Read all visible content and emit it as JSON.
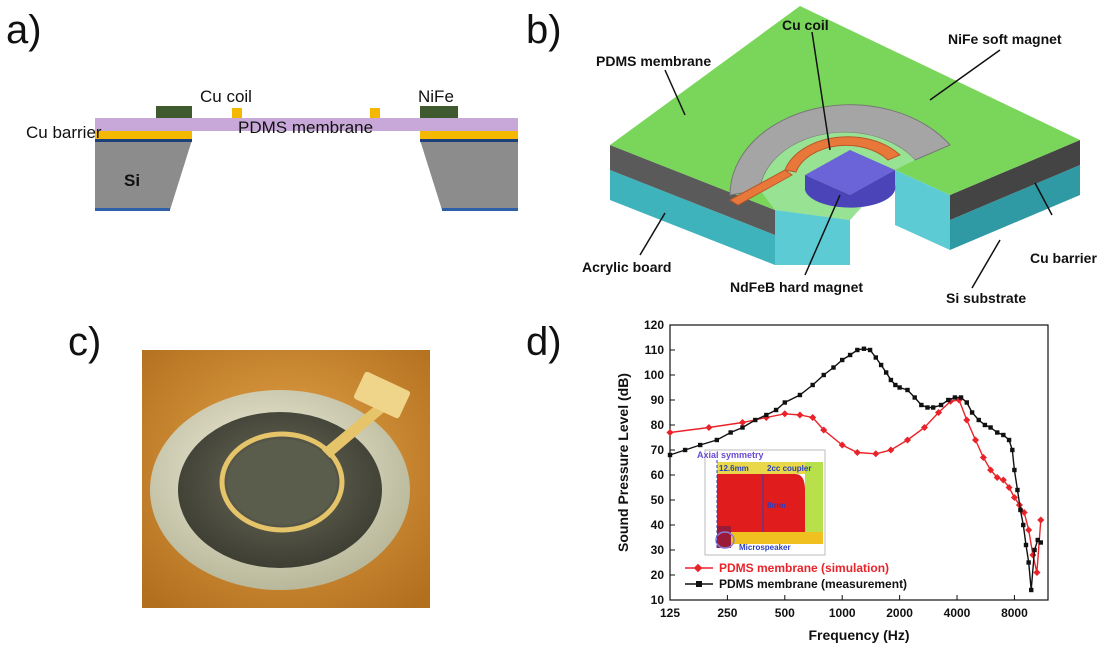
{
  "panels": {
    "a": {
      "letter": "a)",
      "labels": {
        "cu_coil": "Cu coil",
        "nife": "NiFe",
        "cu_barrier": "Cu barrier",
        "pdms": "PDMS membrane",
        "si": "Si"
      }
    },
    "b": {
      "letter": "b)",
      "labels": {
        "cu_coil": "Cu coil",
        "nife": "NiFe soft magnet",
        "pdms": "PDMS membrane",
        "acrylic": "Acrylic board",
        "ndfeb": "NdFeB hard magnet",
        "si": "Si substrate",
        "cu_barrier": "Cu barrier"
      }
    },
    "c": {
      "letter": "c)"
    },
    "d": {
      "letter": "d)"
    }
  },
  "colors": {
    "simulation": "#e8242a",
    "measurement": "#111111",
    "pdms_membrane": "#c8a8d8",
    "nife": "#3f5a2e",
    "cu": "#f5b800",
    "si": "#8c8c8c",
    "pdms_green": "#7ad65a",
    "acrylic": "#56c7cf",
    "ndfeb": "#6a64d8",
    "coil_orange": "#e8773a"
  },
  "chart_data": {
    "type": "line",
    "title": "",
    "xlabel": "Frequency (Hz)",
    "ylabel": "Sound Pressure Level (dB)",
    "xscale": "log",
    "xlim": [
      125,
      12000
    ],
    "ylim": [
      10,
      120
    ],
    "xticks": [
      125,
      250,
      500,
      1000,
      2000,
      4000,
      8000
    ],
    "xtick_labels": [
      "125",
      "250",
      "500",
      "1000",
      "2000",
      "4000",
      "8000"
    ],
    "yticks": [
      10,
      20,
      30,
      40,
      50,
      60,
      70,
      80,
      90,
      100,
      110,
      120
    ],
    "grid": false,
    "legend_position": "bottom-left",
    "series": [
      {
        "name": "PDMS membrane (simulation)",
        "color": "#e8242a",
        "marker": "diamond",
        "x": [
          125,
          200,
          300,
          400,
          500,
          600,
          700,
          800,
          1000,
          1200,
          1500,
          1800,
          2200,
          2700,
          3200,
          3700,
          4100,
          4500,
          5000,
          5500,
          6000,
          6500,
          7000,
          7500,
          8000,
          8500,
          9000,
          9500,
          10000,
          10500,
          11000
        ],
        "y": [
          77,
          79,
          81,
          83,
          84.5,
          84,
          83,
          78,
          72,
          69,
          68.5,
          70,
          74,
          79,
          85,
          89.5,
          90,
          82,
          74,
          67,
          62,
          59,
          58,
          55,
          51,
          48,
          45,
          38,
          28,
          21,
          42
        ]
      },
      {
        "name": "PDMS membrane (measurement)",
        "color": "#111111",
        "marker": "square",
        "x": [
          125,
          150,
          180,
          220,
          260,
          300,
          350,
          400,
          450,
          500,
          600,
          700,
          800,
          900,
          1000,
          1100,
          1200,
          1300,
          1400,
          1500,
          1600,
          1700,
          1800,
          1900,
          2000,
          2200,
          2400,
          2600,
          2800,
          3000,
          3300,
          3600,
          3900,
          4200,
          4500,
          4800,
          5200,
          5600,
          6000,
          6500,
          7000,
          7500,
          7800,
          8000,
          8300,
          8600,
          8900,
          9200,
          9500,
          9800,
          10200,
          10600,
          11000
        ],
        "y": [
          68,
          70,
          72,
          74,
          77,
          79,
          82,
          84,
          86,
          89,
          92,
          96,
          100,
          103,
          106,
          108,
          110,
          110.5,
          110,
          107,
          104,
          101,
          98,
          96,
          95,
          94,
          91,
          88,
          87,
          87,
          88,
          90,
          91,
          91,
          89,
          85,
          82,
          80,
          79,
          77,
          76,
          74,
          70,
          62,
          54,
          46,
          40,
          32,
          25,
          14,
          30,
          34,
          33
        ]
      }
    ],
    "inset": {
      "labels": {
        "axial": "Axial symmetry",
        "dim1": "12.6mm",
        "coupler": "2cc coupler",
        "height": "8mm",
        "speaker": "Microspeaker"
      }
    }
  }
}
